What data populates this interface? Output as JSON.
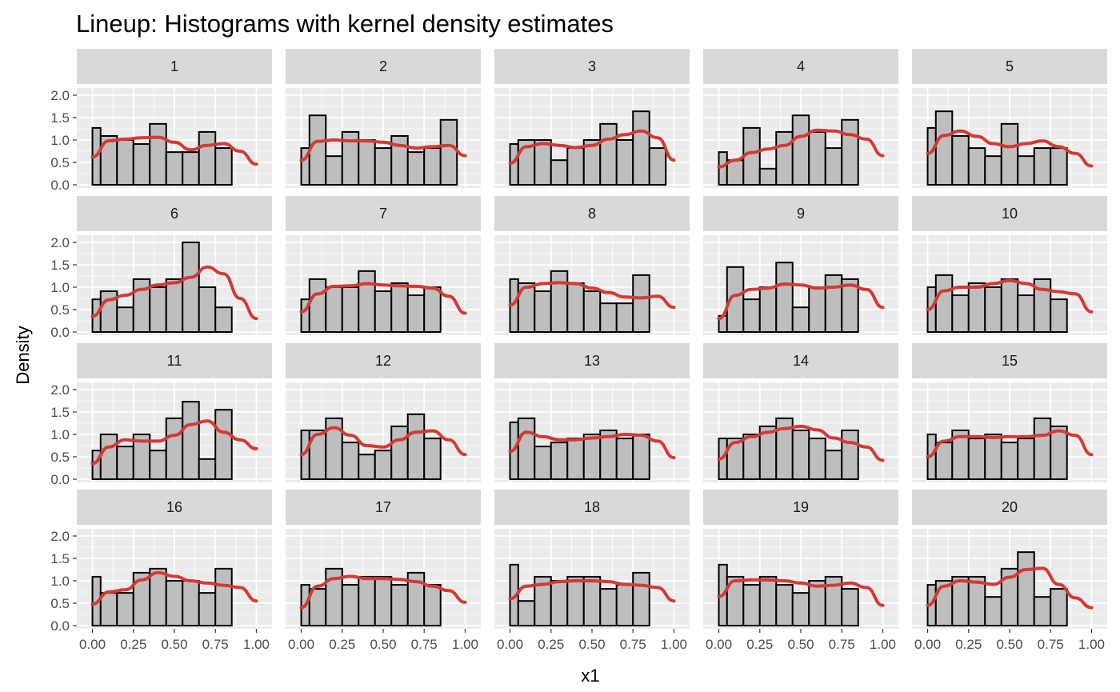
{
  "chart_data": {
    "type": "bar",
    "title": "Lineup: Histograms with kernel density estimates",
    "xlabel": "x1",
    "ylabel": "Density",
    "xlim": [
      0,
      1
    ],
    "ylim": [
      0,
      2.0
    ],
    "x_ticks": [
      "0.00",
      "0.25",
      "0.50",
      "0.75",
      "1.00"
    ],
    "y_ticks": [
      "0.0",
      "0.5",
      "1.0",
      "1.5",
      "2.0"
    ],
    "bin_width": 0.1,
    "bin_centers": [
      0.0,
      0.1,
      0.2,
      0.3,
      0.4,
      0.5,
      0.6,
      0.7,
      0.8,
      0.9,
      1.0
    ],
    "colors": {
      "bars": "#bebebe",
      "bar_outline": "#000000",
      "density": "#d33a36",
      "panel_bg": "#ebebeb",
      "strip_bg": "#d9d9d9",
      "grid": "#ffffff"
    },
    "panels": [
      {
        "label": "1",
        "histogram": [
          1.27,
          1.09,
          1.0,
          0.91,
          1.36,
          0.73,
          0.73,
          1.18,
          0.82
        ],
        "density": [
          0.62,
          0.98,
          1.02,
          1.05,
          1.06,
          0.95,
          0.78,
          0.88,
          0.92,
          0.75,
          0.46
        ]
      },
      {
        "label": "2",
        "histogram": [
          0.82,
          1.55,
          0.64,
          1.18,
          1.0,
          0.82,
          1.09,
          0.73,
          0.82,
          1.45
        ],
        "density": [
          0.55,
          0.97,
          1.0,
          0.98,
          0.98,
          0.95,
          0.88,
          0.82,
          0.85,
          0.88,
          0.65
        ]
      },
      {
        "label": "3",
        "histogram": [
          0.91,
          1.0,
          1.0,
          0.55,
          0.82,
          1.0,
          1.36,
          1.0,
          1.64,
          0.82
        ],
        "density": [
          0.48,
          0.85,
          0.92,
          0.88,
          0.83,
          0.88,
          1.02,
          1.12,
          1.2,
          1.05,
          0.55
        ]
      },
      {
        "label": "4",
        "histogram": [
          0.73,
          0.55,
          1.27,
          0.36,
          1.18,
          1.55,
          1.18,
          0.82,
          1.45
        ],
        "density": [
          0.4,
          0.55,
          0.72,
          0.8,
          0.88,
          1.08,
          1.22,
          1.2,
          1.12,
          1.02,
          0.65
        ]
      },
      {
        "label": "5",
        "histogram": [
          1.27,
          1.64,
          1.09,
          0.82,
          0.64,
          1.36,
          0.64,
          0.82,
          0.82
        ],
        "density": [
          0.7,
          1.1,
          1.2,
          1.08,
          0.92,
          0.85,
          0.92,
          0.98,
          0.85,
          0.7,
          0.42
        ]
      },
      {
        "label": "6",
        "histogram": [
          0.73,
          0.91,
          0.55,
          1.18,
          1.0,
          1.18,
          2.0,
          1.0,
          0.55
        ],
        "density": [
          0.35,
          0.72,
          0.82,
          0.95,
          1.05,
          1.1,
          1.22,
          1.45,
          1.3,
          0.75,
          0.3
        ]
      },
      {
        "label": "7",
        "histogram": [
          0.73,
          1.18,
          1.0,
          1.0,
          1.36,
          0.91,
          1.09,
          0.82,
          1.0
        ],
        "density": [
          0.45,
          0.85,
          1.02,
          1.03,
          1.08,
          1.05,
          1.03,
          1.02,
          0.98,
          0.8,
          0.42
        ]
      },
      {
        "label": "8",
        "histogram": [
          1.18,
          1.09,
          0.91,
          1.36,
          1.09,
          0.91,
          0.64,
          0.64,
          1.27
        ],
        "density": [
          0.6,
          1.0,
          1.08,
          1.1,
          1.08,
          0.98,
          0.88,
          0.78,
          0.76,
          0.8,
          0.55
        ]
      },
      {
        "label": "9",
        "histogram": [
          0.36,
          1.45,
          0.73,
          1.0,
          1.55,
          0.55,
          1.0,
          1.27,
          1.18
        ],
        "density": [
          0.3,
          0.82,
          0.95,
          0.98,
          1.07,
          1.05,
          0.98,
          1.0,
          1.05,
          0.95,
          0.55
        ]
      },
      {
        "label": "10",
        "histogram": [
          1.0,
          1.27,
          0.82,
          1.09,
          1.0,
          1.18,
          0.82,
          1.18,
          0.73
        ],
        "density": [
          0.5,
          0.92,
          1.0,
          1.0,
          1.08,
          1.15,
          1.08,
          0.95,
          0.9,
          0.85,
          0.45
        ]
      },
      {
        "label": "11",
        "histogram": [
          0.64,
          1.0,
          0.73,
          1.0,
          0.64,
          1.36,
          1.73,
          0.45,
          1.55
        ],
        "density": [
          0.35,
          0.72,
          0.88,
          0.85,
          0.85,
          0.98,
          1.22,
          1.3,
          1.05,
          0.88,
          0.68
        ]
      },
      {
        "label": "12",
        "histogram": [
          1.09,
          1.09,
          1.36,
          0.82,
          0.55,
          0.64,
          1.18,
          1.45,
          0.91
        ],
        "density": [
          0.55,
          1.0,
          1.15,
          0.98,
          0.75,
          0.72,
          0.88,
          1.05,
          1.08,
          0.88,
          0.55
        ]
      },
      {
        "label": "13",
        "histogram": [
          1.27,
          1.36,
          0.73,
          0.82,
          0.91,
          1.0,
          1.09,
          0.91,
          1.0
        ],
        "density": [
          0.62,
          1.05,
          0.95,
          0.88,
          0.88,
          0.92,
          0.95,
          1.0,
          0.98,
          0.85,
          0.48
        ]
      },
      {
        "label": "14",
        "histogram": [
          0.91,
          0.91,
          1.0,
          1.18,
          1.36,
          1.09,
          0.91,
          0.64,
          1.09
        ],
        "density": [
          0.45,
          0.82,
          0.95,
          1.05,
          1.13,
          1.18,
          1.1,
          0.92,
          0.82,
          0.72,
          0.42
        ]
      },
      {
        "label": "15",
        "histogram": [
          1.0,
          0.82,
          1.09,
          0.91,
          1.0,
          0.82,
          0.91,
          1.36,
          1.18
        ],
        "density": [
          0.5,
          0.85,
          0.95,
          0.95,
          0.93,
          0.95,
          0.95,
          0.98,
          1.08,
          0.98,
          0.55
        ]
      },
      {
        "label": "16",
        "histogram": [
          1.09,
          0.73,
          0.73,
          1.18,
          1.27,
          1.0,
          1.0,
          0.73,
          1.27
        ],
        "density": [
          0.48,
          0.75,
          0.8,
          1.02,
          1.18,
          1.1,
          1.0,
          0.95,
          0.9,
          0.85,
          0.55
        ]
      },
      {
        "label": "17",
        "histogram": [
          0.91,
          0.82,
          1.27,
          0.91,
          1.09,
          1.09,
          0.91,
          1.18,
          0.91
        ],
        "density": [
          0.4,
          0.88,
          1.05,
          1.1,
          1.05,
          1.05,
          1.03,
          0.98,
          0.88,
          0.78,
          0.52
        ]
      },
      {
        "label": "18",
        "histogram": [
          1.36,
          0.55,
          1.09,
          1.0,
          1.09,
          1.09,
          0.82,
          0.91,
          1.18
        ],
        "density": [
          0.6,
          0.88,
          0.92,
          0.98,
          1.0,
          1.0,
          0.98,
          0.92,
          0.9,
          0.85,
          0.55
        ]
      },
      {
        "label": "19",
        "histogram": [
          1.36,
          1.09,
          0.91,
          1.09,
          0.91,
          0.73,
          1.0,
          1.09,
          0.82
        ],
        "density": [
          0.65,
          1.0,
          1.02,
          1.02,
          1.0,
          0.95,
          0.88,
          0.9,
          0.95,
          0.85,
          0.45
        ]
      },
      {
        "label": "20",
        "histogram": [
          0.91,
          1.0,
          1.09,
          1.09,
          0.64,
          1.27,
          1.64,
          0.64,
          0.82
        ],
        "density": [
          0.45,
          0.88,
          1.0,
          0.97,
          0.92,
          1.08,
          1.25,
          1.28,
          0.92,
          0.62,
          0.4
        ]
      }
    ]
  }
}
